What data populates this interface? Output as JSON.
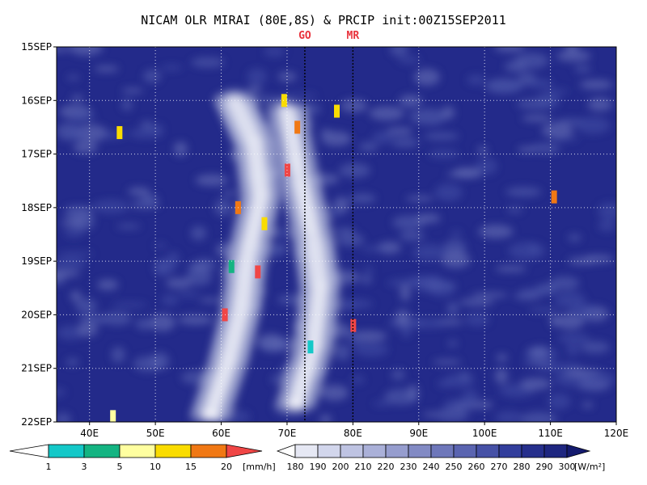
{
  "chart_data": {
    "type": "heatmap",
    "title": "NICAM OLR MIRAI (80E,8S) & PRCIP init:00Z15SEP2011",
    "x_axis": {
      "unit": "longitude (deg E)",
      "range": [
        35,
        120
      ],
      "ticks": [
        40,
        50,
        60,
        70,
        80,
        90,
        100,
        110,
        120
      ],
      "tick_labels": [
        "40E",
        "50E",
        "60E",
        "70E",
        "80E",
        "90E",
        "100E",
        "110E",
        "120E"
      ]
    },
    "y_axis": {
      "unit": "date (2011)",
      "range": [
        "15SEP",
        "22SEP"
      ],
      "ticks": [
        0,
        1,
        2,
        3,
        4,
        5,
        6,
        7
      ],
      "tick_labels": [
        "15SEP",
        "16SEP",
        "17SEP",
        "18SEP",
        "19SEP",
        "20SEP",
        "21SEP",
        "22SEP"
      ]
    },
    "grid": true,
    "markers": [
      {
        "label": "GO",
        "lon": 72.7,
        "color": "#e8323c"
      },
      {
        "label": "MR",
        "lon": 80,
        "color": "#e8323c"
      }
    ],
    "precip_colorbar": {
      "unit": "[mm/h]",
      "labels": [
        "1",
        "3",
        "5",
        "10",
        "15",
        "20"
      ],
      "colors": [
        "#14c8c8",
        "#14b482",
        "#ffffa0",
        "#fadc00",
        "#f07814",
        "#f04646"
      ]
    },
    "olr_colorbar": {
      "unit": "[W/m²]",
      "labels": [
        "180",
        "190",
        "200",
        "210",
        "220",
        "230",
        "240",
        "250",
        "260",
        "270",
        "280",
        "290",
        "300"
      ],
      "colors": [
        "#ffffff",
        "#e6e8f4",
        "#d2d6ec",
        "#bec3e2",
        "#aab0d8",
        "#969dce",
        "#828ac4",
        "#6e77ba",
        "#5a64b0",
        "#4651a6",
        "#323e9c",
        "#262f8c",
        "#1e2680",
        "#141a6e"
      ]
    },
    "olr_low_bands": [
      {
        "label": "main convective band (westward)",
        "points": [
          [
            62,
            16.0
          ],
          [
            65,
            16.8
          ],
          [
            66,
            17.8
          ],
          [
            64,
            18.9
          ],
          [
            63,
            19.9
          ],
          [
            61,
            20.9
          ],
          [
            58,
            22.0
          ]
        ]
      },
      {
        "label": "eastern band",
        "points": [
          [
            70,
            16.2
          ],
          [
            72,
            17.5
          ],
          [
            74,
            18.6
          ],
          [
            75,
            19.5
          ],
          [
            74,
            20.6
          ],
          [
            71,
            21.8
          ]
        ]
      }
    ],
    "precip_cells": [
      {
        "lon": 44.5,
        "time": 1.6,
        "rate": 10
      },
      {
        "lon": 43.5,
        "time": 6.9,
        "rate": 5
      },
      {
        "lon": 60.5,
        "time": 5.0,
        "rate": 20
      },
      {
        "lon": 62.5,
        "time": 3.0,
        "rate": 15
      },
      {
        "lon": 61.5,
        "time": 4.1,
        "rate": 3
      },
      {
        "lon": 65.5,
        "time": 4.2,
        "rate": 20
      },
      {
        "lon": 66.5,
        "time": 3.3,
        "rate": 10
      },
      {
        "lon": 69.5,
        "time": 1.0,
        "rate": 10
      },
      {
        "lon": 71.5,
        "time": 1.5,
        "rate": 15
      },
      {
        "lon": 70.0,
        "time": 2.3,
        "rate": 20
      },
      {
        "lon": 77.5,
        "time": 1.2,
        "rate": 10
      },
      {
        "lon": 73.5,
        "time": 5.6,
        "rate": 1
      },
      {
        "lon": 110.5,
        "time": 2.8,
        "rate": 15
      },
      {
        "lon": 80.0,
        "time": 5.2,
        "rate": 20
      }
    ]
  }
}
